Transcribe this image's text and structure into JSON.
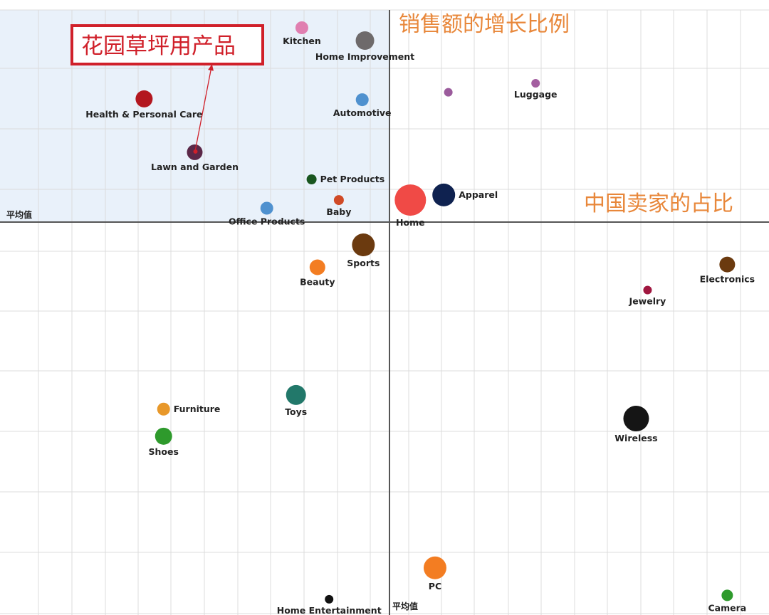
{
  "chart_data": {
    "type": "scatter",
    "title": "",
    "xlabel": "中国卖家的占比",
    "ylabel": "销售额的增长比例",
    "x_avg_label": "平均值",
    "y_avg_label": "平均值",
    "xlim": [
      -1,
      1
    ],
    "ylim": [
      -1,
      1
    ],
    "grid": true,
    "highlight_quadrant": "top-left",
    "highlight_color": "#e9f1fa",
    "points": [
      {
        "name": "Kitchen",
        "x": -0.225,
        "y": 0.91,
        "size": 9,
        "color": "#e07fb0",
        "label_pos": "below"
      },
      {
        "name": "Home Improvement",
        "x": -0.063,
        "y": 0.85,
        "size": 13,
        "color": "#6e6a6b",
        "label_pos": "below"
      },
      {
        "name": "",
        "x": 0.155,
        "y": 0.608,
        "size": 6,
        "color": "#9b5b9c",
        "label_pos": "none"
      },
      {
        "name": "Luggage",
        "x": 0.385,
        "y": 0.65,
        "size": 6,
        "color": "#a45ea0",
        "label_pos": "below"
      },
      {
        "name": "Health & Personal Care",
        "x": -0.63,
        "y": 0.577,
        "size": 12,
        "color": "#b3171f",
        "label_pos": "below"
      },
      {
        "name": "Automotive",
        "x": -0.07,
        "y": 0.573,
        "size": 9,
        "color": "#4f91cf",
        "label_pos": "below"
      },
      {
        "name": "Lawn and Garden",
        "x": -0.5,
        "y": 0.327,
        "size": 11,
        "color": "#5b2848",
        "label_pos": "below"
      },
      {
        "name": "Pet Products",
        "x": -0.2,
        "y": 0.2,
        "size": 7,
        "color": "#19561f",
        "label_pos": "right"
      },
      {
        "name": "Apparel",
        "x": 0.143,
        "y": 0.127,
        "size": 16,
        "color": "#0f2250",
        "label_pos": "right"
      },
      {
        "name": "Home",
        "x": 0.055,
        "y": 0.103,
        "size": 22,
        "color": "#f04a46",
        "label_pos": "below"
      },
      {
        "name": "Baby",
        "x": -0.13,
        "y": 0.103,
        "size": 7,
        "color": "#d04a26",
        "label_pos": "below"
      },
      {
        "name": "Office Products",
        "x": -0.315,
        "y": 0.065,
        "size": 9,
        "color": "#4f91cf",
        "label_pos": "below"
      },
      {
        "name": "Sports",
        "x": -0.067,
        "y": -0.058,
        "size": 16,
        "color": "#6b3a0f",
        "label_pos": "below"
      },
      {
        "name": "Beauty",
        "x": -0.185,
        "y": -0.115,
        "size": 11,
        "color": "#f37d22",
        "label_pos": "below"
      },
      {
        "name": "Jewelry",
        "x": 0.68,
        "y": -0.173,
        "size": 6,
        "color": "#a0163f",
        "label_pos": "below"
      },
      {
        "name": "Electronics",
        "x": 0.89,
        "y": -0.108,
        "size": 11,
        "color": "#6b3a0f",
        "label_pos": "below"
      },
      {
        "name": "Toys",
        "x": -0.24,
        "y": -0.44,
        "size": 14,
        "color": "#22786a",
        "label_pos": "below"
      },
      {
        "name": "Furniture",
        "x": -0.58,
        "y": -0.476,
        "size": 9,
        "color": "#e8982a",
        "label_pos": "right"
      },
      {
        "name": "Shoes",
        "x": -0.58,
        "y": -0.545,
        "size": 12,
        "color": "#2e9a2c",
        "label_pos": "below"
      },
      {
        "name": "Wireless",
        "x": 0.65,
        "y": -0.5,
        "size": 18,
        "color": "#151515",
        "label_pos": "below"
      },
      {
        "name": "PC",
        "x": 0.12,
        "y": -0.88,
        "size": 16,
        "color": "#f37d22",
        "label_pos": "below"
      },
      {
        "name": "Home Entertainment",
        "x": -0.155,
        "y": -0.96,
        "size": 6,
        "color": "#111111",
        "label_pos": "below"
      },
      {
        "name": "Camera",
        "x": 0.89,
        "y": -0.95,
        "size": 8,
        "color": "#2e9a2c",
        "label_pos": "below"
      }
    ],
    "annotation": {
      "text": "花园草坪用产品",
      "border_color": "#d0202a",
      "arrow_to": "Lawn and Garden"
    }
  }
}
